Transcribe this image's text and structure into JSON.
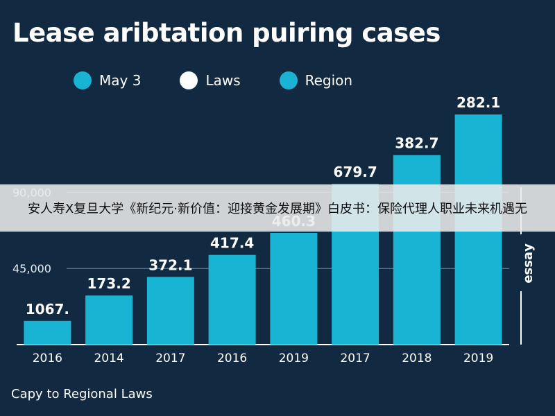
{
  "chart_data": {
    "type": "bar",
    "title": "Lease aribtation puiring cases",
    "legend": [
      {
        "label": "May 3",
        "color": "#19b4d4"
      },
      {
        "label": "Laws",
        "color": "#ffffff"
      },
      {
        "label": "Region",
        "color": "#19b4d4"
      }
    ],
    "categories": [
      "2016",
      "2014",
      "2017",
      "2016",
      "2019",
      "2017",
      "2018",
      "2019"
    ],
    "values": [
      14000,
      29000,
      40000,
      53000,
      66000,
      95000,
      112000,
      136000
    ],
    "data_labels": [
      "1067.",
      "173.2",
      "372.1",
      "417.4",
      "460.3",
      "679.7",
      "382.7",
      "282.1"
    ],
    "yticks": [
      {
        "value": 45000,
        "label": "45,000"
      },
      {
        "value": 90000,
        "label": "90,000"
      }
    ],
    "ylim": [
      0,
      150000
    ],
    "ylabel": "ʎɐssǝ",
    "bar_color": "#19b4d4",
    "axis_color": "#ffffff"
  },
  "footer": "Capy to Regional Laws",
  "overlay_banner": "安人寿X复旦大学《新纪元·新价值：迎接黄金发展期》白皮书：保险代理人职业未来机遇无"
}
